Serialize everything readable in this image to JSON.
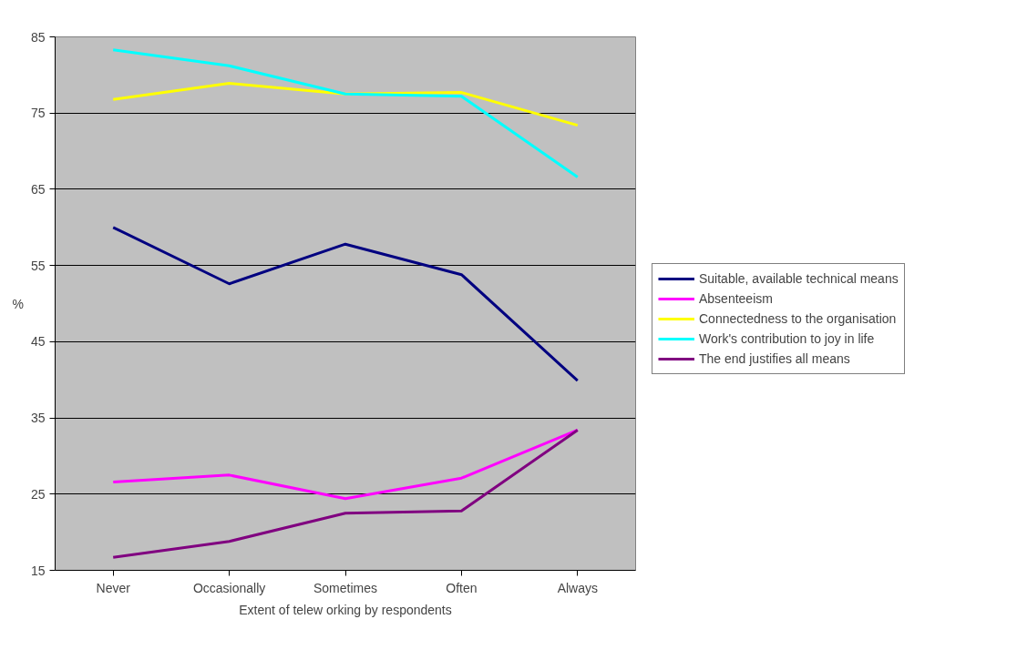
{
  "chart_data": {
    "type": "line",
    "xlabel": "Extent of telew orking by respondents",
    "ylabel": "%",
    "categories": [
      "Never",
      "Occasionally",
      "Sometimes",
      "Often",
      "Always"
    ],
    "series": [
      {
        "name": "Suitable, available technical means",
        "color": "#000080",
        "values": [
          60.0,
          52.6,
          57.8,
          53.8,
          39.9
        ]
      },
      {
        "name": "Absenteeism",
        "color": "#ff00ff",
        "values": [
          26.6,
          27.5,
          24.4,
          27.1,
          33.4
        ]
      },
      {
        "name": "Connectedness to the organisation",
        "color": "#ffff00",
        "values": [
          76.8,
          78.9,
          77.5,
          77.7,
          73.4
        ]
      },
      {
        "name": "Work's contribution to joy in life",
        "color": "#00ffff",
        "values": [
          83.3,
          81.2,
          77.5,
          77.2,
          66.6
        ]
      },
      {
        "name": "The end justifies all means",
        "color": "#800080",
        "values": [
          16.7,
          18.8,
          22.5,
          22.8,
          33.4
        ]
      }
    ],
    "ylim": [
      15,
      85
    ],
    "yticks": [
      15,
      25,
      35,
      45,
      55,
      65,
      75,
      85
    ],
    "grid": "y",
    "legend": "right",
    "marker": "none",
    "line_style": "solid"
  }
}
